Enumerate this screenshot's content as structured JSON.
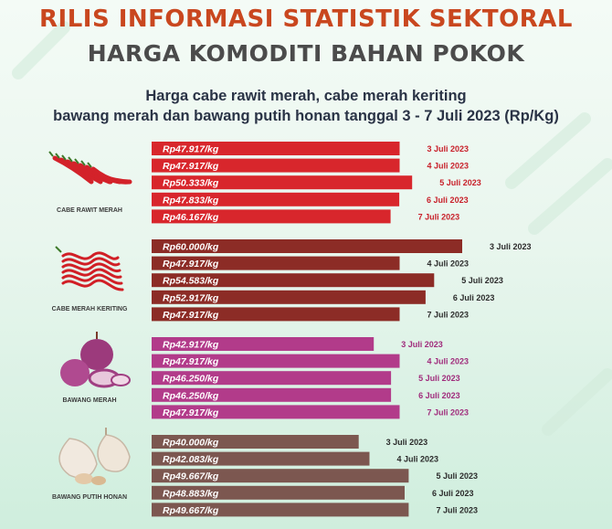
{
  "header": {
    "title_line1": "RILIS INFORMASI STATISTIK SEKTORAL",
    "title_line2": "HARGA KOMODITI BAHAN POKOK",
    "subtitle_line1": "Harga cabe rawit merah, cabe merah keriting",
    "subtitle_line2": "bawang merah dan bawang putih honan tanggal 3 - 7 Juli 2023 (Rp/Kg)"
  },
  "colors": {
    "title_orange": "#c9471f",
    "cabe_rawit_merah": "#d8262c",
    "cabe_merah_keriting": "#8c2c26",
    "bawang_merah": "#b23b8a",
    "bawang_putih_honan": "#7c5750"
  },
  "chart_data": {
    "type": "bar",
    "orientation": "horizontal",
    "unit": "Rp/Kg",
    "groups": [
      {
        "name": "CABE RAWIT MERAH",
        "icon": "chili-pepper-icon",
        "color": "#d8262c",
        "date_color": "#c8202a",
        "categories": [
          "3 Juli 2023",
          "4 Juli 2023",
          "5 Juli 2023",
          "6 Juli 2023",
          "7 Juli 2023"
        ],
        "values": [
          47917,
          47917,
          50333,
          47833,
          46167
        ],
        "labels": [
          "Rp47.917/kg",
          "Rp47.917/kg",
          "Rp50.333/kg",
          "Rp47.833/kg",
          "Rp46.167/kg"
        ]
      },
      {
        "name": "CABE MERAH KERITING",
        "icon": "curly-chili-icon",
        "color": "#8c2c26",
        "date_color": "#2b2b2b",
        "categories": [
          "3 Juli 2023",
          "4 Juli 2023",
          "5 Juli 2023",
          "6 Juli 2023",
          "7 Juli 2023"
        ],
        "values": [
          60000,
          47917,
          54583,
          52917,
          47917
        ],
        "labels": [
          "Rp60.000/kg",
          "Rp47.917/kg",
          "Rp54.583/kg",
          "Rp52.917/kg",
          "Rp47.917/kg"
        ]
      },
      {
        "name": "BAWANG MERAH",
        "icon": "shallot-icon",
        "color": "#b23b8a",
        "date_color": "#a02c7c",
        "categories": [
          "3 Juli 2023",
          "4 Juli 2023",
          "5 Juli 2023",
          "6 Juli 2023",
          "7 Juli 2023"
        ],
        "values": [
          42917,
          47917,
          46250,
          46250,
          47917
        ],
        "labels": [
          "Rp42.917/kg",
          "Rp47.917/kg",
          "Rp46.250/kg",
          "Rp46.250/kg",
          "Rp47.917/kg"
        ]
      },
      {
        "name": "BAWANG PUTIH HONAN",
        "icon": "garlic-icon",
        "color": "#7c5750",
        "date_color": "#2b2b2b",
        "categories": [
          "3 Juli 2023",
          "4 Juli 2023",
          "5 Juli 2023",
          "6 Juli 2023",
          "7 Juli 2023"
        ],
        "values": [
          40000,
          42083,
          49667,
          48883,
          49667
        ],
        "labels": [
          "Rp40.000/kg",
          "Rp42.083/kg",
          "Rp49.667/kg",
          "Rp48.883/kg",
          "Rp49.667/kg"
        ]
      }
    ]
  }
}
